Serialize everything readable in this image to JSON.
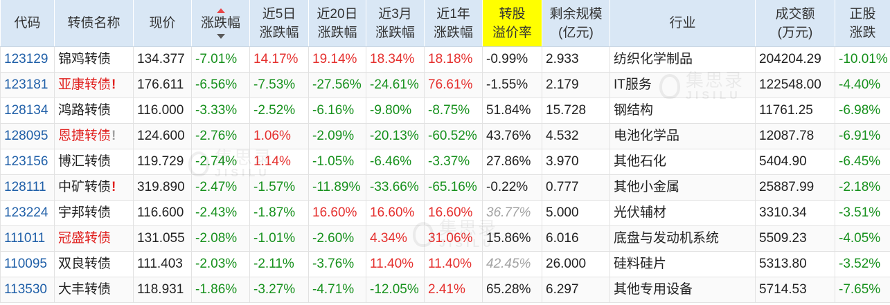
{
  "header": {
    "code": "代码",
    "name": "转债名称",
    "price": "现价",
    "change": "涨跌幅",
    "chg_5d": [
      "近5日",
      "涨跌幅"
    ],
    "chg_20d": [
      "近20日",
      "涨跌幅"
    ],
    "chg_3m": [
      "近3月",
      "涨跌幅"
    ],
    "chg_1y": [
      "近1年",
      "涨跌幅"
    ],
    "premium": [
      "转股",
      "溢价率"
    ],
    "remaining": [
      "剩余规模",
      "(亿元)"
    ],
    "industry": "行业",
    "turnover": [
      "成交额",
      "(万元)"
    ],
    "stock_change": [
      "正股",
      "涨跌"
    ]
  },
  "colors": {
    "header_bg": "#d9e7f5",
    "premium_header_bg": "#ffff00",
    "code_link": "#1f5fa8",
    "text": "#222222",
    "up": "#e5302e",
    "down": "#17911d",
    "muted": "#a3a3a3"
  },
  "sort_arrows": {
    "up_color": "#e8474a",
    "down_color": "#5a5a5a"
  },
  "watermark": {
    "cn": "集思录",
    "en": "JISILU"
  },
  "rows": [
    {
      "code": "123129",
      "name": "锦鸡转债",
      "name_color": "#222222",
      "mark": "",
      "mark_color": "",
      "price": "134.377",
      "change": "-7.01%",
      "chg_5d": "14.17%",
      "chg_20d": "19.14%",
      "chg_3m": "18.34%",
      "chg_1y": "18.18%",
      "premium": "-0.99%",
      "premium_muted": false,
      "remaining": "2.933",
      "industry": "纺织化学制品",
      "turnover": "204204.29",
      "stock_change": "-10.01%"
    },
    {
      "code": "123181",
      "name": "亚康转债",
      "name_color": "#e0201e",
      "mark": "!",
      "mark_color": "#e0201e",
      "price": "176.611",
      "change": "-6.56%",
      "chg_5d": "-7.53%",
      "chg_20d": "-27.56%",
      "chg_3m": "-24.61%",
      "chg_1y": "76.61%",
      "premium": "-1.55%",
      "premium_muted": false,
      "remaining": "2.179",
      "industry": "IT服务",
      "turnover": "122548.00",
      "stock_change": "-4.40%"
    },
    {
      "code": "128134",
      "name": "鸿路转债",
      "name_color": "#222222",
      "mark": "",
      "mark_color": "",
      "price": "116.000",
      "change": "-3.33%",
      "chg_5d": "-2.52%",
      "chg_20d": "-6.16%",
      "chg_3m": "-9.80%",
      "chg_1y": "-8.75%",
      "premium": "51.84%",
      "premium_muted": false,
      "remaining": "15.728",
      "industry": "钢结构",
      "turnover": "11761.25",
      "stock_change": "-6.98%"
    },
    {
      "code": "128095",
      "name": "恩捷转债",
      "name_color": "#e0201e",
      "mark": "!",
      "mark_color": "#a0a0a0",
      "price": "124.600",
      "change": "-2.76%",
      "chg_5d": "1.06%",
      "chg_20d": "-2.09%",
      "chg_3m": "-20.13%",
      "chg_1y": "-60.52%",
      "premium": "43.76%",
      "premium_muted": false,
      "remaining": "4.532",
      "industry": "电池化学品",
      "turnover": "12087.78",
      "stock_change": "-6.91%"
    },
    {
      "code": "123156",
      "name": "博汇转债",
      "name_color": "#222222",
      "mark": "",
      "mark_color": "",
      "price": "119.729",
      "change": "-2.74%",
      "chg_5d": "1.14%",
      "chg_20d": "-1.05%",
      "chg_3m": "-6.46%",
      "chg_1y": "-3.37%",
      "premium": "27.86%",
      "premium_muted": false,
      "remaining": "3.970",
      "industry": "其他石化",
      "turnover": "5404.90",
      "stock_change": "-6.45%"
    },
    {
      "code": "128111",
      "name": "中矿转债",
      "name_color": "#222222",
      "mark": "!",
      "mark_color": "#e0201e",
      "price": "319.890",
      "change": "-2.47%",
      "chg_5d": "-1.57%",
      "chg_20d": "-11.89%",
      "chg_3m": "-33.66%",
      "chg_1y": "-65.16%",
      "premium": "-0.22%",
      "premium_muted": false,
      "remaining": "0.777",
      "industry": "其他小金属",
      "turnover": "25887.99",
      "stock_change": "-2.18%"
    },
    {
      "code": "123224",
      "name": "宇邦转债",
      "name_color": "#222222",
      "mark": "",
      "mark_color": "",
      "price": "116.600",
      "change": "-2.43%",
      "chg_5d": "-1.87%",
      "chg_20d": "16.60%",
      "chg_3m": "16.60%",
      "chg_1y": "16.60%",
      "premium": "36.77%",
      "premium_muted": true,
      "remaining": "5.000",
      "industry": "光伏辅材",
      "turnover": "3310.34",
      "stock_change": "-3.51%"
    },
    {
      "code": "111011",
      "name": "冠盛转债",
      "name_color": "#e0201e",
      "mark": "",
      "mark_color": "",
      "price": "131.055",
      "change": "-2.08%",
      "chg_5d": "-1.01%",
      "chg_20d": "-2.60%",
      "chg_3m": "4.34%",
      "chg_1y": "31.06%",
      "premium": "15.86%",
      "premium_muted": false,
      "remaining": "6.016",
      "industry": "底盘与发动机系统",
      "turnover": "5509.23",
      "stock_change": "-4.05%"
    },
    {
      "code": "110095",
      "name": "双良转债",
      "name_color": "#222222",
      "mark": "",
      "mark_color": "",
      "price": "111.403",
      "change": "-2.03%",
      "chg_5d": "-2.11%",
      "chg_20d": "-3.76%",
      "chg_3m": "11.40%",
      "chg_1y": "11.40%",
      "premium": "42.45%",
      "premium_muted": true,
      "remaining": "26.000",
      "industry": "硅料硅片",
      "turnover": "5313.80",
      "stock_change": "-3.52%"
    },
    {
      "code": "113530",
      "name": "大丰转债",
      "name_color": "#222222",
      "mark": "",
      "mark_color": "",
      "price": "118.931",
      "change": "-1.86%",
      "chg_5d": "-3.27%",
      "chg_20d": "-4.71%",
      "chg_3m": "-12.05%",
      "chg_1y": "2.41%",
      "premium": "65.28%",
      "premium_muted": false,
      "remaining": "6.297",
      "industry": "其他专用设备",
      "turnover": "5714.53",
      "stock_change": "-7.65%"
    }
  ]
}
